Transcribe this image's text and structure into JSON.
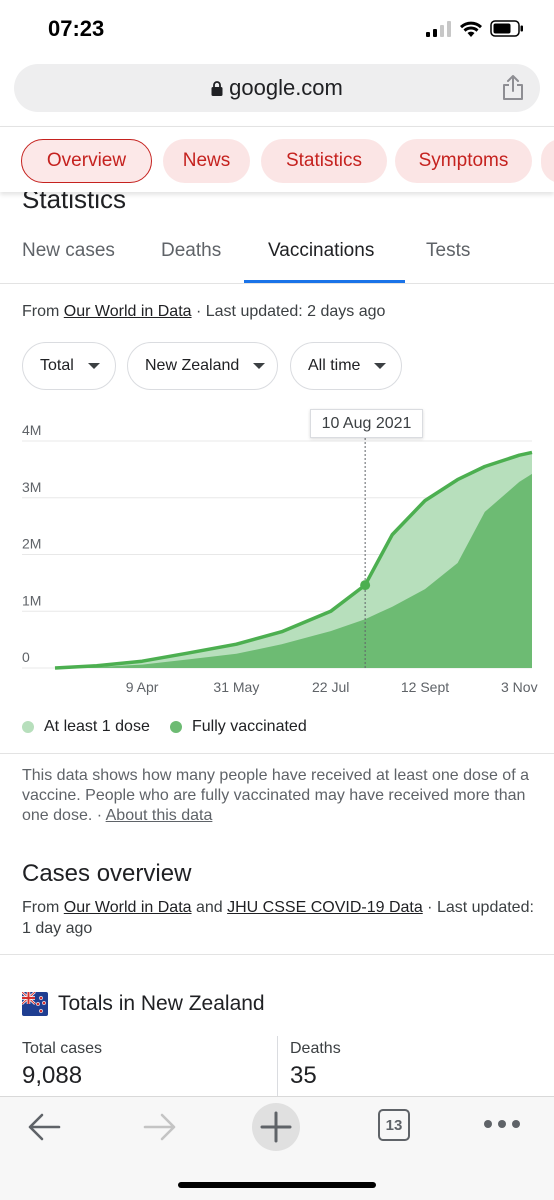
{
  "status_bar": {
    "time": "07:23"
  },
  "browser": {
    "url": "google.com",
    "tab_count": "13"
  },
  "chips": [
    {
      "label": "Overview",
      "active": true
    },
    {
      "label": "News",
      "active": false
    },
    {
      "label": "Statistics",
      "active": false
    },
    {
      "label": "Symptoms",
      "active": false
    }
  ],
  "section_title": "Statistics",
  "tabs": [
    {
      "label": "New cases"
    },
    {
      "label": "Deaths"
    },
    {
      "label": "Vaccinations",
      "active": true
    },
    {
      "label": "Tests"
    }
  ],
  "source": {
    "prefix": "From ",
    "link": "Our World in Data",
    "suffix": " · Last updated: 2 days ago"
  },
  "filters": {
    "metric": "Total",
    "location": "New Zealand",
    "range": "All time"
  },
  "tooltip": "10 Aug 2021",
  "legend": {
    "at_least_one": "At least 1 dose",
    "fully": "Fully vaccinated"
  },
  "chart_data": {
    "type": "area",
    "x": [
      "2021-02-20",
      "2021-03-15",
      "2021-04-09",
      "2021-05-04",
      "2021-05-31",
      "2021-06-25",
      "2021-07-22",
      "2021-08-10",
      "2021-08-25",
      "2021-09-12",
      "2021-09-30",
      "2021-10-15",
      "2021-11-03",
      "2021-11-10"
    ],
    "x_ticks": [
      "9 Apr",
      "31 May",
      "22 Jul",
      "12 Sept",
      "3 Nov"
    ],
    "y_ticks": [
      "0",
      "1M",
      "2M",
      "3M",
      "4M"
    ],
    "ylim": [
      0,
      4000000
    ],
    "series": [
      {
        "name": "At least 1 dose",
        "color": "#b7dfbc",
        "values": [
          0,
          40000,
          120000,
          260000,
          420000,
          640000,
          1000000,
          1460000,
          2350000,
          2950000,
          3320000,
          3550000,
          3750000,
          3800000
        ]
      },
      {
        "name": "Fully vaccinated",
        "color": "#6dbb73",
        "values": [
          0,
          15000,
          60000,
          150000,
          250000,
          420000,
          650000,
          860000,
          1080000,
          1390000,
          1850000,
          2750000,
          3280000,
          3420000
        ]
      }
    ],
    "highlight": {
      "x": "2021-08-10",
      "value": 1460000
    },
    "line_color": "#4caf50",
    "grid": true
  },
  "note": {
    "text": "This data shows how many people have received at least one dose of a vaccine. People who are fully vaccinated may have received more than one dose.",
    "sep": " · ",
    "link": "About this data"
  },
  "cases_overview": {
    "title": "Cases overview",
    "prefix": "From ",
    "link1": "Our World in Data",
    "and": " and ",
    "link2": "JHU CSSE COVID-19 Data",
    "suffix": " · Last updated: 1 day ago"
  },
  "totals": {
    "title": "Totals in New Zealand",
    "cases_label": "Total cases",
    "cases_value": "9,088",
    "deaths_label": "Deaths",
    "deaths_value": "35"
  }
}
